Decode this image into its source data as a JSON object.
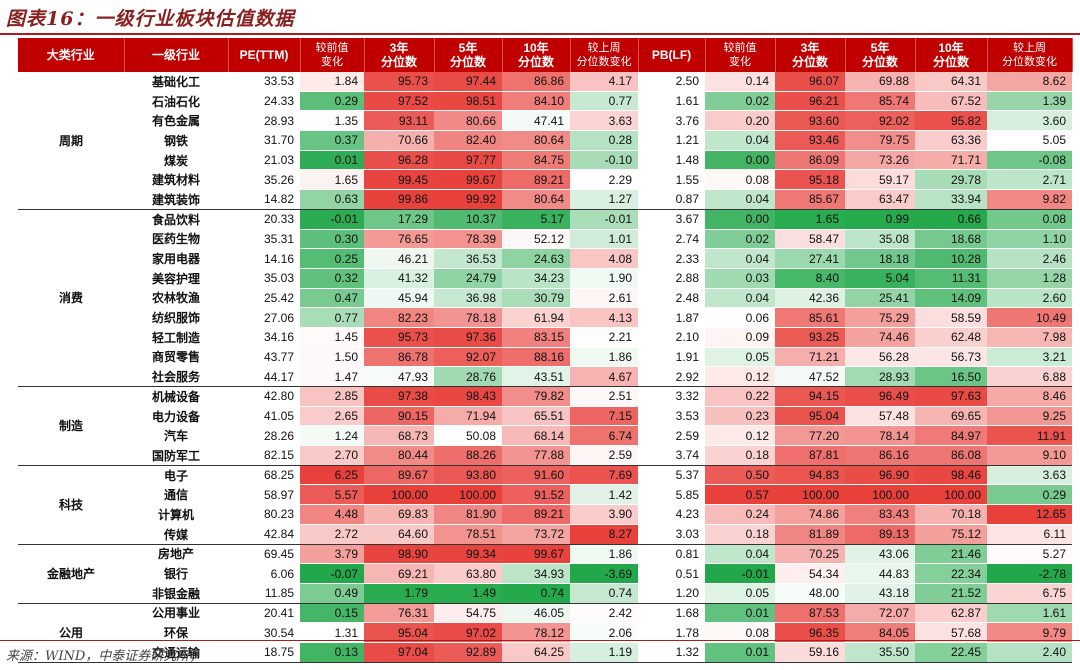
{
  "title": "图表16：一级行业板块估值数据",
  "source": "来源：WIND，中泰证券研究所；",
  "chart_data": {
    "type": "table",
    "columns": [
      {
        "label1": "大类行业",
        "label2": ""
      },
      {
        "label1": "一级行业",
        "label2": ""
      },
      {
        "label1": "PE(TTM)",
        "label2": ""
      },
      {
        "label1": "较前值",
        "label2": "变化"
      },
      {
        "label1": "3年",
        "label2": "分位数"
      },
      {
        "label1": "5年",
        "label2": "分位数"
      },
      {
        "label1": "10年",
        "label2": "分位数"
      },
      {
        "label1": "较上周",
        "label2": "分位数变化"
      },
      {
        "label1": "PB(LF)",
        "label2": ""
      },
      {
        "label1": "较前值",
        "label2": "变化"
      },
      {
        "label1": "3年",
        "label2": "分位数"
      },
      {
        "label1": "5年",
        "label2": "分位数"
      },
      {
        "label1": "10年",
        "label2": "分位数"
      },
      {
        "label1": "较上周",
        "label2": "分位数变化"
      }
    ],
    "groups": [
      {
        "category": "周期",
        "rows": [
          [
            "基础化工",
            33.53,
            1.84,
            95.73,
            97.44,
            86.86,
            4.17,
            2.5,
            0.14,
            96.07,
            69.88,
            64.31,
            8.62
          ],
          [
            "石油石化",
            24.33,
            0.29,
            97.52,
            98.51,
            84.1,
            0.77,
            1.61,
            0.02,
            96.21,
            85.74,
            67.52,
            1.39
          ],
          [
            "有色金属",
            28.93,
            1.35,
            93.11,
            80.66,
            47.41,
            3.63,
            3.76,
            0.2,
            93.6,
            92.02,
            95.82,
            3.6
          ],
          [
            "钢铁",
            31.7,
            0.37,
            70.66,
            82.4,
            80.64,
            0.28,
            1.21,
            0.04,
            93.46,
            79.75,
            63.36,
            5.05
          ],
          [
            "煤炭",
            21.03,
            0.01,
            96.28,
            97.77,
            84.75,
            -0.1,
            1.48,
            0.0,
            86.09,
            73.26,
            71.71,
            -0.08
          ],
          [
            "建筑材料",
            35.26,
            1.65,
            99.45,
            99.67,
            89.21,
            2.29,
            1.55,
            0.08,
            95.18,
            59.17,
            29.78,
            2.71
          ],
          [
            "建筑装饰",
            14.82,
            0.63,
            99.86,
            99.92,
            80.64,
            1.27,
            0.87,
            0.04,
            85.67,
            63.47,
            33.94,
            9.82
          ]
        ]
      },
      {
        "category": "消费",
        "rows": [
          [
            "食品饮料",
            20.33,
            -0.01,
            17.29,
            10.37,
            5.17,
            -0.01,
            3.67,
            0.0,
            1.65,
            0.99,
            0.66,
            0.08
          ],
          [
            "医药生物",
            35.31,
            0.3,
            76.65,
            78.39,
            52.12,
            1.01,
            2.74,
            0.02,
            58.47,
            35.08,
            18.68,
            1.1
          ],
          [
            "家用电器",
            14.16,
            0.25,
            46.21,
            36.53,
            24.63,
            4.08,
            2.33,
            0.04,
            27.41,
            18.18,
            10.28,
            2.46
          ],
          [
            "美容护理",
            35.03,
            0.32,
            41.32,
            24.79,
            34.23,
            1.9,
            2.88,
            0.03,
            8.4,
            5.04,
            11.31,
            1.28
          ],
          [
            "农林牧渔",
            25.42,
            0.47,
            45.94,
            36.98,
            30.79,
            2.61,
            2.48,
            0.04,
            42.36,
            25.41,
            14.09,
            2.6
          ],
          [
            "纺织服饰",
            27.06,
            0.77,
            82.23,
            78.18,
            61.94,
            4.13,
            1.87,
            0.06,
            85.61,
            75.29,
            58.59,
            10.49
          ],
          [
            "轻工制造",
            34.16,
            1.45,
            95.73,
            97.36,
            83.15,
            2.21,
            2.1,
            0.09,
            93.25,
            74.46,
            62.48,
            7.98
          ],
          [
            "商贸零售",
            43.77,
            1.5,
            86.78,
            92.07,
            88.16,
            1.86,
            1.91,
            0.05,
            71.21,
            56.28,
            56.73,
            3.21
          ],
          [
            "社会服务",
            44.17,
            1.47,
            47.93,
            28.76,
            43.51,
            4.67,
            2.92,
            0.12,
            47.52,
            28.93,
            16.5,
            6.88
          ]
        ]
      },
      {
        "category": "制造",
        "rows": [
          [
            "机械设备",
            42.8,
            2.85,
            97.38,
            98.43,
            79.82,
            2.51,
            3.32,
            0.22,
            94.15,
            96.49,
            97.63,
            8.46
          ],
          [
            "电力设备",
            41.05,
            2.65,
            90.15,
            71.94,
            65.51,
            7.15,
            3.53,
            0.23,
            95.04,
            57.48,
            69.65,
            9.25
          ],
          [
            "汽车",
            28.26,
            1.24,
            68.73,
            50.08,
            68.14,
            6.74,
            2.59,
            0.12,
            77.2,
            78.14,
            84.97,
            11.91
          ],
          [
            "国防军工",
            82.15,
            2.7,
            80.44,
            88.26,
            77.88,
            2.59,
            3.74,
            0.18,
            87.81,
            86.16,
            86.08,
            9.1
          ]
        ]
      },
      {
        "category": "科技",
        "rows": [
          [
            "电子",
            68.25,
            6.25,
            89.67,
            93.8,
            91.6,
            7.69,
            5.37,
            0.5,
            94.83,
            96.9,
            98.46,
            3.63
          ],
          [
            "通信",
            58.97,
            5.57,
            100.0,
            100.0,
            91.52,
            1.42,
            5.85,
            0.57,
            100.0,
            100.0,
            100.0,
            0.29
          ],
          [
            "计算机",
            80.23,
            4.48,
            69.83,
            81.9,
            89.21,
            3.9,
            4.23,
            0.24,
            74.86,
            83.43,
            70.18,
            12.65
          ],
          [
            "传媒",
            42.84,
            2.72,
            64.6,
            78.51,
            73.72,
            8.27,
            3.03,
            0.18,
            81.89,
            89.13,
            75.12,
            6.11
          ]
        ]
      },
      {
        "category": "金融地产",
        "rows": [
          [
            "房地产",
            69.45,
            3.79,
            98.9,
            99.34,
            99.67,
            1.86,
            0.81,
            0.04,
            70.25,
            43.06,
            21.46,
            5.27
          ],
          [
            "银行",
            6.06,
            -0.07,
            69.21,
            63.8,
            34.93,
            -3.69,
            0.51,
            -0.01,
            54.34,
            44.83,
            22.34,
            -2.78
          ],
          [
            "非银金融",
            11.85,
            0.49,
            1.79,
            1.49,
            0.74,
            0.74,
            1.2,
            0.05,
            48.0,
            43.18,
            21.52,
            6.75
          ]
        ]
      },
      {
        "category": "公用",
        "rows": [
          [
            "公用事业",
            20.41,
            0.15,
            76.31,
            54.75,
            46.05,
            2.42,
            1.68,
            0.01,
            87.53,
            72.07,
            62.87,
            1.61
          ],
          [
            "环保",
            30.54,
            1.31,
            95.04,
            97.02,
            78.12,
            2.06,
            1.78,
            0.08,
            96.35,
            84.05,
            57.68,
            9.79
          ],
          [
            "交通运输",
            18.75,
            0.13,
            97.04,
            92.89,
            64.25,
            1.19,
            1.32,
            0.01,
            59.16,
            35.5,
            22.45,
            2.4
          ]
        ]
      }
    ],
    "color_scale": {
      "high": "#e8413c",
      "mid": "#ffffff",
      "low": "#22a84a"
    }
  }
}
